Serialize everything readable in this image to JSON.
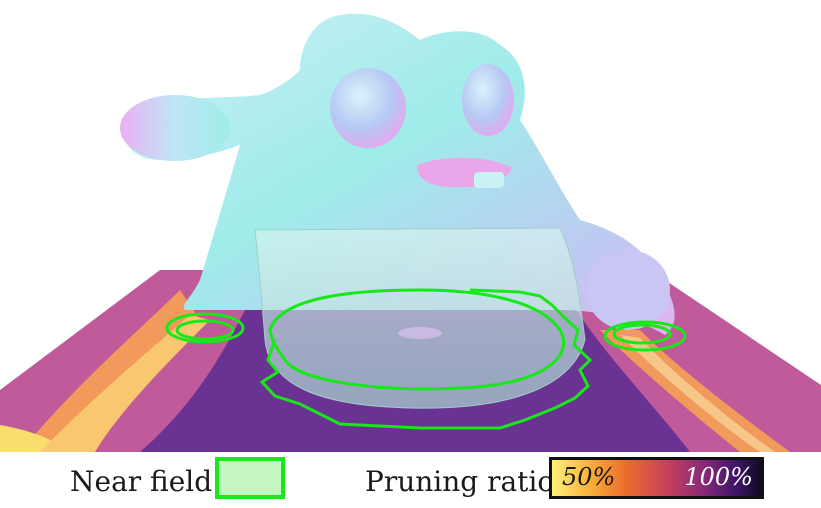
{
  "legend": {
    "near_field_label": "Near field",
    "pruning_ratio_label": "Pruning ratio",
    "colorbar_min": "50%",
    "colorbar_max": "100%",
    "near_field_color": "#18e818",
    "near_field_fill": "#c4f7c0"
  },
  "colormap": [
    "#fff07a",
    "#f9b13a",
    "#ec6d2c",
    "#c7405c",
    "#8a2a78",
    "#3e1568",
    "#110a24"
  ]
}
